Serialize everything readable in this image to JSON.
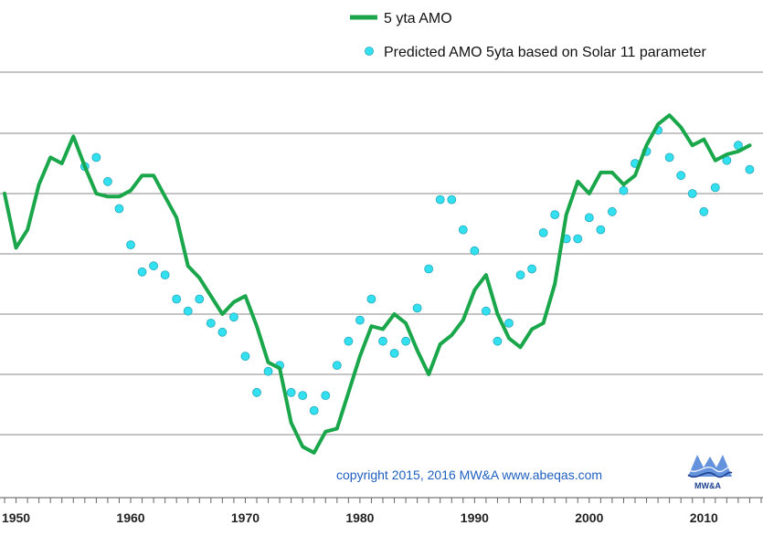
{
  "chart_data": {
    "type": "line",
    "title": "",
    "xlabel": "",
    "ylabel": "",
    "xlim": [
      1949,
      2015
    ],
    "x_ticks": [
      "1950",
      "1960",
      "1970",
      "1980",
      "1990",
      "2000",
      "2010"
    ],
    "grid": "horizontal",
    "legend_position": "top-right",
    "series": [
      {
        "name": "5 yta AMO",
        "style": "line",
        "color": "#1aa64a",
        "points": [
          [
            1949,
            0.0
          ],
          [
            1950,
            -0.9
          ],
          [
            1951,
            -0.6
          ],
          [
            1952,
            0.15
          ],
          [
            1953,
            0.6
          ],
          [
            1954,
            0.5
          ],
          [
            1955,
            0.95
          ],
          [
            1956,
            0.45
          ],
          [
            1957,
            0.0
          ],
          [
            1958,
            -0.05
          ],
          [
            1959,
            -0.05
          ],
          [
            1960,
            0.05
          ],
          [
            1961,
            0.3
          ],
          [
            1962,
            0.3
          ],
          [
            1963,
            -0.05
          ],
          [
            1964,
            -0.4
          ],
          [
            1965,
            -1.2
          ],
          [
            1966,
            -1.4
          ],
          [
            1967,
            -1.7
          ],
          [
            1968,
            -2.0
          ],
          [
            1969,
            -1.8
          ],
          [
            1970,
            -1.7
          ],
          [
            1971,
            -2.2
          ],
          [
            1972,
            -2.8
          ],
          [
            1973,
            -2.9
          ],
          [
            1974,
            -3.8
          ],
          [
            1975,
            -4.2
          ],
          [
            1976,
            -4.3
          ],
          [
            1977,
            -3.95
          ],
          [
            1978,
            -3.9
          ],
          [
            1979,
            -3.3
          ],
          [
            1980,
            -2.7
          ],
          [
            1981,
            -2.2
          ],
          [
            1982,
            -2.25
          ],
          [
            1983,
            -2.0
          ],
          [
            1984,
            -2.15
          ],
          [
            1985,
            -2.6
          ],
          [
            1986,
            -3.0
          ],
          [
            1987,
            -2.5
          ],
          [
            1988,
            -2.35
          ],
          [
            1989,
            -2.1
          ],
          [
            1990,
            -1.6
          ],
          [
            1991,
            -1.35
          ],
          [
            1992,
            -2.0
          ],
          [
            1993,
            -2.4
          ],
          [
            1994,
            -2.55
          ],
          [
            1995,
            -2.25
          ],
          [
            1996,
            -2.15
          ],
          [
            1997,
            -1.5
          ],
          [
            1998,
            -0.35
          ],
          [
            1999,
            0.2
          ],
          [
            2000,
            0.0
          ],
          [
            2001,
            0.35
          ],
          [
            2002,
            0.35
          ],
          [
            2003,
            0.15
          ],
          [
            2004,
            0.3
          ],
          [
            2005,
            0.8
          ],
          [
            2006,
            1.15
          ],
          [
            2007,
            1.3
          ],
          [
            2008,
            1.1
          ],
          [
            2009,
            0.8
          ],
          [
            2010,
            0.9
          ],
          [
            2011,
            0.55
          ],
          [
            2012,
            0.65
          ],
          [
            2013,
            0.7
          ],
          [
            2014,
            0.8
          ]
        ]
      },
      {
        "name": "Predicted AMO 5yta based on Solar 11 parameter",
        "style": "scatter",
        "color": "#33e0f0",
        "points": [
          [
            1956,
            0.45
          ],
          [
            1957,
            0.6
          ],
          [
            1958,
            0.2
          ],
          [
            1959,
            -0.25
          ],
          [
            1960,
            -0.85
          ],
          [
            1961,
            -1.3
          ],
          [
            1962,
            -1.2
          ],
          [
            1963,
            -1.35
          ],
          [
            1964,
            -1.75
          ],
          [
            1965,
            -1.95
          ],
          [
            1966,
            -1.75
          ],
          [
            1967,
            -2.15
          ],
          [
            1968,
            -2.3
          ],
          [
            1969,
            -2.05
          ],
          [
            1970,
            -2.7
          ],
          [
            1971,
            -3.3
          ],
          [
            1972,
            -2.95
          ],
          [
            1973,
            -2.85
          ],
          [
            1974,
            -3.3
          ],
          [
            1975,
            -3.35
          ],
          [
            1976,
            -3.6
          ],
          [
            1977,
            -3.35
          ],
          [
            1978,
            -2.85
          ],
          [
            1979,
            -2.45
          ],
          [
            1980,
            -2.1
          ],
          [
            1981,
            -1.75
          ],
          [
            1982,
            -2.45
          ],
          [
            1983,
            -2.65
          ],
          [
            1984,
            -2.45
          ],
          [
            1985,
            -1.9
          ],
          [
            1986,
            -1.25
          ],
          [
            1987,
            -0.1
          ],
          [
            1988,
            -0.1
          ],
          [
            1989,
            -0.6
          ],
          [
            1990,
            -0.95
          ],
          [
            1991,
            -1.95
          ],
          [
            1992,
            -2.45
          ],
          [
            1993,
            -2.15
          ],
          [
            1994,
            -1.35
          ],
          [
            1995,
            -1.25
          ],
          [
            1996,
            -0.65
          ],
          [
            1997,
            -0.35
          ],
          [
            1998,
            -0.75
          ],
          [
            1999,
            -0.75
          ],
          [
            2000,
            -0.4
          ],
          [
            2001,
            -0.6
          ],
          [
            2002,
            -0.3
          ],
          [
            2003,
            0.05
          ],
          [
            2004,
            0.5
          ],
          [
            2005,
            0.7
          ],
          [
            2006,
            1.05
          ],
          [
            2007,
            0.6
          ],
          [
            2008,
            0.3
          ],
          [
            2009,
            0.0
          ],
          [
            2010,
            -0.3
          ],
          [
            2011,
            0.1
          ],
          [
            2012,
            0.55
          ],
          [
            2013,
            0.8
          ],
          [
            2014,
            0.4
          ]
        ]
      }
    ],
    "annotations": {
      "copyright": "copyright 2015, 2016   MW&A   www.abeqas.com",
      "logo_text": "MW&A"
    }
  }
}
